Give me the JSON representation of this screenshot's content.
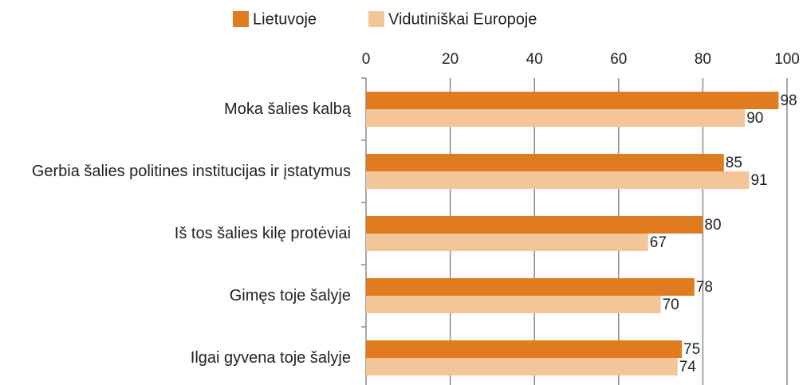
{
  "chart_data": {
    "type": "barh",
    "categories": [
      "Moka šalies kalbą",
      "Gerbia šalies politines institucijas ir įstatymus",
      "Iš tos šalies kilę protėviai",
      "Gimęs toje šalyje",
      "Ilgai gyvena toje šalyje"
    ],
    "series": [
      {
        "name": "Lietuvoje",
        "color": "#e07b1f",
        "values": [
          98,
          85,
          80,
          78,
          75
        ]
      },
      {
        "name": "Vidutiniškai Europoje",
        "color": "#f5c59a",
        "values": [
          90,
          91,
          67,
          70,
          74
        ]
      }
    ],
    "xlim": [
      0,
      100
    ],
    "xticks": [
      0,
      20,
      40,
      60,
      80,
      100
    ],
    "grid": true,
    "legend": "top"
  }
}
